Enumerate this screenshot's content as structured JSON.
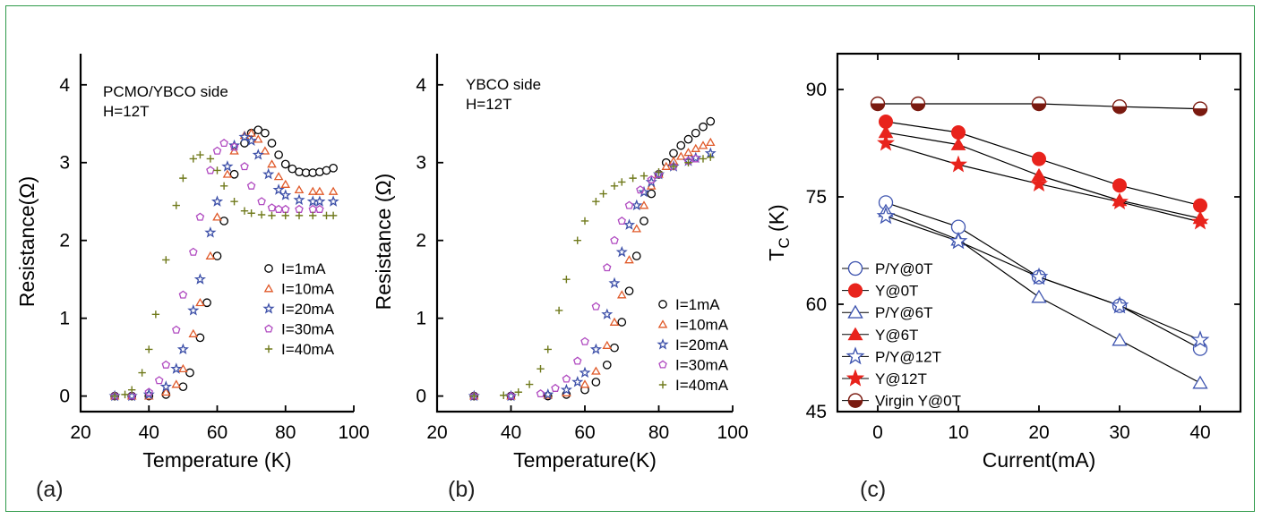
{
  "colors": {
    "black": "#000000",
    "red": "#e05a2a",
    "blue": "#3c4fa8",
    "magenta": "#b04ac0",
    "olive": "#707a1c",
    "chartRed": "#e8231c",
    "chartBlue": "#3f55b0",
    "maroon": "#7a1a10",
    "border": "#2e9a4a"
  },
  "chart_data": [
    {
      "type": "scatter",
      "panel_label": "(a)",
      "annotations": [
        "PCMO/YBCO side",
        "H=12T"
      ],
      "xlabel": "Temperature (K)",
      "ylabel": "Resistance(Ω)",
      "xlim": [
        20,
        100
      ],
      "ylim": [
        -0.2,
        4.4
      ],
      "xticks": [
        20,
        40,
        60,
        80,
        100
      ],
      "yticks": [
        0,
        1,
        2,
        3,
        4
      ],
      "legend_position": "lower-right",
      "series": [
        {
          "name": "I=1mA",
          "marker": "circle",
          "color": "#000000",
          "x": [
            30,
            35,
            40,
            45,
            50,
            52,
            55,
            57,
            60,
            62,
            65,
            68,
            70,
            72,
            74,
            76,
            78,
            80,
            82,
            84,
            86,
            88,
            90,
            92,
            94
          ],
          "y": [
            0,
            0,
            0,
            0.02,
            0.12,
            0.3,
            0.75,
            1.2,
            1.8,
            2.25,
            2.85,
            3.25,
            3.38,
            3.42,
            3.38,
            3.25,
            3.1,
            2.98,
            2.92,
            2.88,
            2.87,
            2.87,
            2.88,
            2.9,
            2.93
          ]
        },
        {
          "name": "I=10mA",
          "marker": "triangle",
          "color": "#e05a2a",
          "x": [
            30,
            35,
            40,
            45,
            48,
            50,
            53,
            55,
            58,
            60,
            63,
            65,
            68,
            70,
            72,
            74,
            76,
            78,
            80,
            84,
            88,
            90,
            94
          ],
          "y": [
            0,
            0,
            0,
            0.05,
            0.15,
            0.35,
            0.8,
            1.2,
            1.8,
            2.3,
            2.85,
            3.15,
            3.35,
            3.38,
            3.3,
            3.15,
            2.98,
            2.82,
            2.72,
            2.65,
            2.63,
            2.63,
            2.63
          ]
        },
        {
          "name": "I=20mA",
          "marker": "star",
          "color": "#3c4fa8",
          "x": [
            30,
            35,
            40,
            45,
            48,
            50,
            53,
            55,
            58,
            60,
            63,
            65,
            68,
            70,
            72,
            75,
            78,
            80,
            84,
            88,
            90,
            94
          ],
          "y": [
            0,
            0,
            0.02,
            0.12,
            0.35,
            0.6,
            1.1,
            1.5,
            2.1,
            2.5,
            2.95,
            3.22,
            3.33,
            3.28,
            3.1,
            2.85,
            2.65,
            2.58,
            2.52,
            2.5,
            2.5,
            2.5
          ]
        },
        {
          "name": "I=30mA",
          "marker": "pentagon",
          "color": "#b04ac0",
          "x": [
            30,
            35,
            40,
            43,
            45,
            48,
            50,
            53,
            55,
            58,
            60,
            62,
            65,
            68,
            70,
            73,
            76,
            78,
            80,
            84,
            88,
            90
          ],
          "y": [
            0,
            0,
            0.05,
            0.2,
            0.4,
            0.85,
            1.3,
            1.85,
            2.3,
            2.9,
            3.15,
            3.25,
            3.2,
            2.95,
            2.7,
            2.5,
            2.42,
            2.4,
            2.4,
            2.4,
            2.4,
            2.4
          ]
        },
        {
          "name": "I=40mA",
          "marker": "plus",
          "color": "#707a1c",
          "x": [
            30,
            33,
            35,
            38,
            40,
            42,
            45,
            48,
            50,
            53,
            55,
            58,
            60,
            62,
            65,
            68,
            70,
            73,
            76,
            80,
            84,
            88,
            92,
            94
          ],
          "y": [
            0,
            0.02,
            0.08,
            0.3,
            0.6,
            1.05,
            1.75,
            2.45,
            2.8,
            3.05,
            3.1,
            3.05,
            2.9,
            2.7,
            2.5,
            2.38,
            2.35,
            2.33,
            2.32,
            2.32,
            2.32,
            2.32,
            2.32,
            2.32
          ]
        }
      ]
    },
    {
      "type": "scatter",
      "panel_label": "(b)",
      "annotations": [
        "YBCO side",
        "H=12T"
      ],
      "xlabel": "Temperature(K)",
      "ylabel": "Resistance (Ω)",
      "xlim": [
        20,
        100
      ],
      "ylim": [
        -0.2,
        4.4
      ],
      "xticks": [
        20,
        40,
        60,
        80,
        100
      ],
      "yticks": [
        0,
        1,
        2,
        3,
        4
      ],
      "legend_position": "lower-right",
      "series": [
        {
          "name": "I=1mA",
          "marker": "circle",
          "color": "#000000",
          "x": [
            30,
            40,
            50,
            55,
            60,
            63,
            66,
            68,
            70,
            72,
            74,
            76,
            78,
            80,
            82,
            84,
            86,
            88,
            90,
            92,
            94
          ],
          "y": [
            0,
            0,
            0,
            0.02,
            0.08,
            0.18,
            0.4,
            0.62,
            0.95,
            1.35,
            1.8,
            2.25,
            2.6,
            2.85,
            3.0,
            3.12,
            3.22,
            3.3,
            3.38,
            3.46,
            3.53
          ]
        },
        {
          "name": "I=10mA",
          "marker": "triangle",
          "color": "#e05a2a",
          "x": [
            30,
            40,
            50,
            55,
            60,
            63,
            66,
            68,
            70,
            72,
            74,
            76,
            78,
            80,
            82,
            84,
            86,
            88,
            90,
            92,
            94
          ],
          "y": [
            0,
            0,
            0.01,
            0.04,
            0.15,
            0.32,
            0.65,
            0.95,
            1.3,
            1.75,
            2.15,
            2.45,
            2.7,
            2.85,
            2.95,
            3.02,
            3.08,
            3.13,
            3.18,
            3.22,
            3.26
          ]
        },
        {
          "name": "I=20mA",
          "marker": "star",
          "color": "#3c4fa8",
          "x": [
            30,
            40,
            50,
            55,
            58,
            60,
            63,
            66,
            68,
            70,
            72,
            74,
            76,
            78,
            80,
            84,
            88,
            90,
            94
          ],
          "y": [
            0,
            0,
            0.02,
            0.08,
            0.18,
            0.3,
            0.6,
            1.05,
            1.45,
            1.85,
            2.2,
            2.45,
            2.62,
            2.75,
            2.85,
            2.95,
            3.02,
            3.06,
            3.12
          ]
        },
        {
          "name": "I=30mA",
          "marker": "pentagon",
          "color": "#b04ac0",
          "x": [
            30,
            40,
            48,
            52,
            55,
            58,
            60,
            63,
            66,
            68,
            70,
            72,
            75,
            78,
            80,
            84,
            88,
            90
          ],
          "y": [
            0,
            0,
            0.03,
            0.1,
            0.22,
            0.45,
            0.7,
            1.15,
            1.65,
            2.0,
            2.25,
            2.45,
            2.65,
            2.78,
            2.85,
            2.95,
            3.02,
            3.05
          ]
        },
        {
          "name": "I=40mA",
          "marker": "plus",
          "color": "#707a1c",
          "x": [
            30,
            38,
            42,
            45,
            48,
            50,
            53,
            55,
            58,
            60,
            63,
            65,
            68,
            70,
            73,
            76,
            80,
            84,
            88,
            92,
            94
          ],
          "y": [
            0,
            0.01,
            0.05,
            0.15,
            0.35,
            0.6,
            1.1,
            1.5,
            2.0,
            2.25,
            2.5,
            2.6,
            2.7,
            2.75,
            2.8,
            2.83,
            2.88,
            2.95,
            3.0,
            3.05,
            3.07
          ]
        }
      ]
    },
    {
      "type": "scatter",
      "panel_label": "(c)",
      "xlabel": "Current(mA)",
      "ylabel": "T",
      "ylabel_sub": "C",
      "ylabel_unit": " (K)",
      "xlim": [
        -5,
        45
      ],
      "ylim": [
        45,
        95
      ],
      "xticks": [
        0,
        10,
        20,
        30,
        40
      ],
      "yticks": [
        45,
        60,
        75,
        90
      ],
      "legend_position": "lower-left",
      "series": [
        {
          "name": "P/Y@0T",
          "marker": "circle",
          "filled": false,
          "color": "#3f55b0",
          "x": [
            1,
            10,
            20,
            30,
            40
          ],
          "y": [
            74.2,
            70.8,
            63.8,
            59.8,
            53.8
          ]
        },
        {
          "name": "Y@0T",
          "marker": "circle",
          "filled": true,
          "color": "#e8231c",
          "x": [
            1,
            10,
            20,
            30,
            40
          ],
          "y": [
            85.5,
            84.0,
            80.3,
            76.6,
            73.8
          ]
        },
        {
          "name": "P/Y@6T",
          "marker": "triangle",
          "filled": false,
          "color": "#3f55b0",
          "x": [
            1,
            10,
            20,
            30,
            40
          ],
          "y": [
            73.0,
            69.0,
            61.0,
            55.0,
            49.0
          ]
        },
        {
          "name": "Y@6T",
          "marker": "triangle",
          "filled": true,
          "color": "#e8231c",
          "x": [
            1,
            10,
            20,
            30,
            40
          ],
          "y": [
            84.0,
            82.3,
            78.0,
            74.5,
            72.0
          ]
        },
        {
          "name": "P/Y@12T",
          "marker": "star",
          "filled": false,
          "color": "#3f55b0",
          "x": [
            1,
            10,
            20,
            30,
            40
          ],
          "y": [
            72.3,
            68.8,
            63.8,
            59.8,
            55.0
          ]
        },
        {
          "name": "Y@12T",
          "marker": "star",
          "filled": true,
          "color": "#e8231c",
          "x": [
            1,
            10,
            20,
            30,
            40
          ],
          "y": [
            82.5,
            79.5,
            76.8,
            74.3,
            71.5
          ]
        },
        {
          "name": "Virgin Y@0T",
          "marker": "half-circle",
          "filled": true,
          "color": "#7a1a10",
          "x": [
            0,
            5,
            20,
            30,
            40
          ],
          "y": [
            88.0,
            88.0,
            88.0,
            87.6,
            87.3
          ]
        }
      ]
    }
  ]
}
